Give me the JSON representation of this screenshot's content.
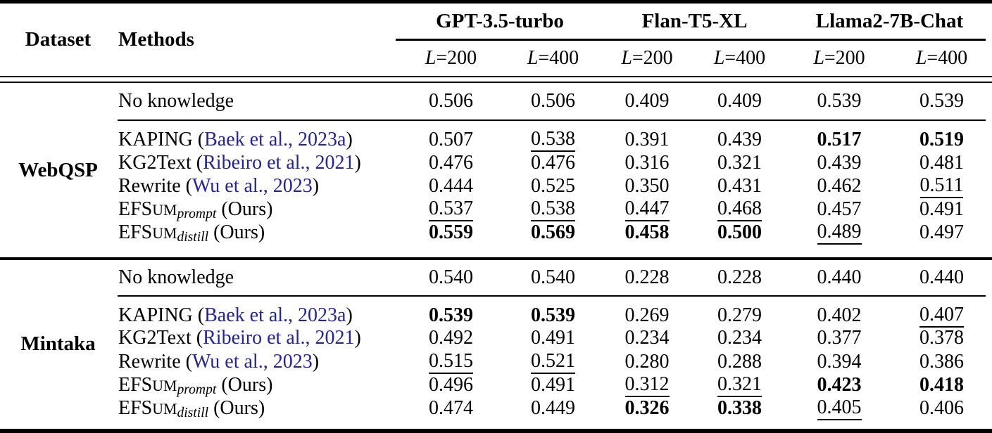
{
  "colors": {
    "citation": "#23239e",
    "text": "#000000",
    "background": "#ffffff"
  },
  "header": {
    "dataset": "Dataset",
    "methods": "Methods",
    "models": [
      {
        "name": "GPT-3.5-turbo"
      },
      {
        "name": "Flan-T5-XL"
      },
      {
        "name": "Llama2-7B-Chat"
      }
    ],
    "budgets": [
      {
        "var": "L",
        "eq": "=200"
      },
      {
        "var": "L",
        "eq": "=400"
      }
    ]
  },
  "groups": [
    {
      "dataset": "WebQSP",
      "no_knowledge": {
        "label": "No knowledge",
        "values": [
          {
            "v": "0.506",
            "s": "plain"
          },
          {
            "v": "0.506",
            "s": "plain"
          },
          {
            "v": "0.409",
            "s": "plain"
          },
          {
            "v": "0.409",
            "s": "plain"
          },
          {
            "v": "0.539",
            "s": "plain"
          },
          {
            "v": "0.539",
            "s": "plain"
          }
        ]
      },
      "methods": [
        {
          "kind": "cite",
          "name": "KAPING",
          "cite_open": " (",
          "cite": "Baek et al., 2023a",
          "cite_close": ")",
          "values": [
            {
              "v": "0.507",
              "s": "plain"
            },
            {
              "v": "0.538",
              "s": "underline"
            },
            {
              "v": "0.391",
              "s": "plain"
            },
            {
              "v": "0.439",
              "s": "plain"
            },
            {
              "v": "0.517",
              "s": "bold"
            },
            {
              "v": "0.519",
              "s": "bold"
            }
          ]
        },
        {
          "kind": "cite",
          "name": "KG2Text",
          "cite_open": " (",
          "cite": "Ribeiro et al., 2021",
          "cite_close": ")",
          "values": [
            {
              "v": "0.476",
              "s": "plain"
            },
            {
              "v": "0.476",
              "s": "plain"
            },
            {
              "v": "0.316",
              "s": "plain"
            },
            {
              "v": "0.321",
              "s": "plain"
            },
            {
              "v": "0.439",
              "s": "plain"
            },
            {
              "v": "0.481",
              "s": "plain"
            }
          ]
        },
        {
          "kind": "cite",
          "name": "Rewrite",
          "cite_open": " (",
          "cite": "Wu et al., 2023",
          "cite_close": ")",
          "values": [
            {
              "v": "0.444",
              "s": "plain"
            },
            {
              "v": "0.525",
              "s": "plain"
            },
            {
              "v": "0.350",
              "s": "plain"
            },
            {
              "v": "0.431",
              "s": "plain"
            },
            {
              "v": "0.462",
              "s": "plain"
            },
            {
              "v": "0.511",
              "s": "underline"
            }
          ]
        },
        {
          "kind": "efsum",
          "base": "EFS",
          "smallcaps": "UM",
          "sub": "prompt",
          "post": " (Ours)",
          "values": [
            {
              "v": "0.537",
              "s": "underline"
            },
            {
              "v": "0.538",
              "s": "underline"
            },
            {
              "v": "0.447",
              "s": "underline"
            },
            {
              "v": "0.468",
              "s": "underline"
            },
            {
              "v": "0.457",
              "s": "plain"
            },
            {
              "v": "0.491",
              "s": "plain"
            }
          ]
        },
        {
          "kind": "efsum",
          "base": "EFS",
          "smallcaps": "UM",
          "sub": "distill",
          "post": " (Ours)",
          "values": [
            {
              "v": "0.559",
              "s": "bold"
            },
            {
              "v": "0.569",
              "s": "bold"
            },
            {
              "v": "0.458",
              "s": "bold"
            },
            {
              "v": "0.500",
              "s": "bold"
            },
            {
              "v": "0.489",
              "s": "underline"
            },
            {
              "v": "0.497",
              "s": "plain"
            }
          ]
        }
      ]
    },
    {
      "dataset": "Mintaka",
      "no_knowledge": {
        "label": "No knowledge",
        "values": [
          {
            "v": "0.540",
            "s": "plain"
          },
          {
            "v": "0.540",
            "s": "plain"
          },
          {
            "v": "0.228",
            "s": "plain"
          },
          {
            "v": "0.228",
            "s": "plain"
          },
          {
            "v": "0.440",
            "s": "plain"
          },
          {
            "v": "0.440",
            "s": "plain"
          }
        ]
      },
      "methods": [
        {
          "kind": "cite",
          "name": "KAPING",
          "cite_open": " (",
          "cite": "Baek et al., 2023a",
          "cite_close": ")",
          "values": [
            {
              "v": "0.539",
              "s": "bold"
            },
            {
              "v": "0.539",
              "s": "bold"
            },
            {
              "v": "0.269",
              "s": "plain"
            },
            {
              "v": "0.279",
              "s": "plain"
            },
            {
              "v": "0.402",
              "s": "plain"
            },
            {
              "v": "0.407",
              "s": "underline"
            }
          ]
        },
        {
          "kind": "cite",
          "name": "KG2Text",
          "cite_open": " (",
          "cite": "Ribeiro et al., 2021",
          "cite_close": ")",
          "values": [
            {
              "v": "0.492",
              "s": "plain"
            },
            {
              "v": "0.491",
              "s": "plain"
            },
            {
              "v": "0.234",
              "s": "plain"
            },
            {
              "v": "0.234",
              "s": "plain"
            },
            {
              "v": "0.377",
              "s": "plain"
            },
            {
              "v": "0.378",
              "s": "plain"
            }
          ]
        },
        {
          "kind": "cite",
          "name": "Rewrite",
          "cite_open": " (",
          "cite": "Wu et al., 2023",
          "cite_close": ")",
          "values": [
            {
              "v": "0.515",
              "s": "underline"
            },
            {
              "v": "0.521",
              "s": "underline"
            },
            {
              "v": "0.280",
              "s": "plain"
            },
            {
              "v": "0.288",
              "s": "plain"
            },
            {
              "v": "0.394",
              "s": "plain"
            },
            {
              "v": "0.386",
              "s": "plain"
            }
          ]
        },
        {
          "kind": "efsum",
          "base": "EFS",
          "smallcaps": "UM",
          "sub": "prompt",
          "post": " (Ours)",
          "values": [
            {
              "v": "0.496",
              "s": "plain"
            },
            {
              "v": "0.491",
              "s": "plain"
            },
            {
              "v": "0.312",
              "s": "underline"
            },
            {
              "v": "0.321",
              "s": "underline"
            },
            {
              "v": "0.423",
              "s": "bold"
            },
            {
              "v": "0.418",
              "s": "bold"
            }
          ]
        },
        {
          "kind": "efsum",
          "base": "EFS",
          "smallcaps": "UM",
          "sub": "distill",
          "post": " (Ours)",
          "values": [
            {
              "v": "0.474",
              "s": "plain"
            },
            {
              "v": "0.449",
              "s": "plain"
            },
            {
              "v": "0.326",
              "s": "bold"
            },
            {
              "v": "0.338",
              "s": "bold"
            },
            {
              "v": "0.405",
              "s": "underline"
            },
            {
              "v": "0.406",
              "s": "plain"
            }
          ]
        }
      ]
    }
  ],
  "chart_data": {
    "type": "table",
    "title": "",
    "columns": [
      "Dataset",
      "Methods",
      "GPT-3.5-turbo L=200",
      "GPT-3.5-turbo L=400",
      "Flan-T5-XL L=200",
      "Flan-T5-XL L=400",
      "Llama2-7B-Chat L=200",
      "Llama2-7B-Chat L=400"
    ],
    "rows": [
      [
        "WebQSP",
        "No knowledge",
        0.506,
        0.506,
        0.409,
        0.409,
        0.539,
        0.539
      ],
      [
        "WebQSP",
        "KAPING (Baek et al., 2023a)",
        0.507,
        0.538,
        0.391,
        0.439,
        0.517,
        0.519
      ],
      [
        "WebQSP",
        "KG2Text (Ribeiro et al., 2021)",
        0.476,
        0.476,
        0.316,
        0.321,
        0.439,
        0.481
      ],
      [
        "WebQSP",
        "Rewrite (Wu et al., 2023)",
        0.444,
        0.525,
        0.35,
        0.431,
        0.462,
        0.511
      ],
      [
        "WebQSP",
        "EFSum_prompt (Ours)",
        0.537,
        0.538,
        0.447,
        0.468,
        0.457,
        0.491
      ],
      [
        "WebQSP",
        "EFSum_distill (Ours)",
        0.559,
        0.569,
        0.458,
        0.5,
        0.489,
        0.497
      ],
      [
        "Mintaka",
        "No knowledge",
        0.54,
        0.54,
        0.228,
        0.228,
        0.44,
        0.44
      ],
      [
        "Mintaka",
        "KAPING (Baek et al., 2023a)",
        0.539,
        0.539,
        0.269,
        0.279,
        0.402,
        0.407
      ],
      [
        "Mintaka",
        "KG2Text (Ribeiro et al., 2021)",
        0.492,
        0.491,
        0.234,
        0.234,
        0.377,
        0.378
      ],
      [
        "Mintaka",
        "Rewrite (Wu et al., 2023)",
        0.515,
        0.521,
        0.28,
        0.288,
        0.394,
        0.386
      ],
      [
        "Mintaka",
        "EFSum_prompt (Ours)",
        0.496,
        0.491,
        0.312,
        0.321,
        0.423,
        0.418
      ],
      [
        "Mintaka",
        "EFSum_distill (Ours)",
        0.474,
        0.449,
        0.326,
        0.338,
        0.405,
        0.406
      ]
    ]
  }
}
